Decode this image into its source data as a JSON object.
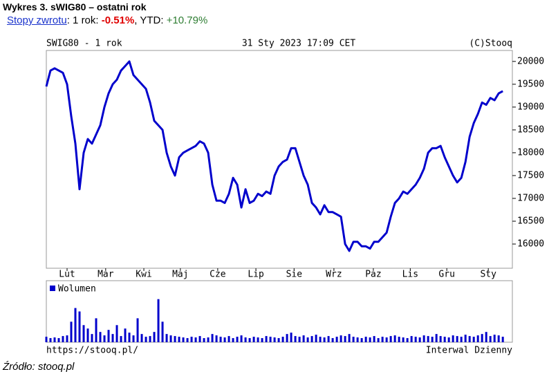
{
  "header": {
    "title": "Wykres 3. sWIG80 – ostatni rok",
    "returns_link": "Stopy zwrotu",
    "one_year_label": ": 1 rok:",
    "one_year_value": "-0.51%",
    "ytd_label": ", YTD:",
    "ytd_value": "+10.79%"
  },
  "source": "Źródło: stooq.pl",
  "chart_data": {
    "type": "line",
    "title": "SWIG80 - 1 rok",
    "timestamp": "31 Sty 2023 17:09 CET",
    "copyright": "(C)Stooq",
    "footer_left": "https://stooq.pl/",
    "footer_right": "Interwal Dzienny",
    "color": "#0000cc",
    "values": [
      19450,
      19800,
      19850,
      19800,
      19750,
      19500,
      18800,
      18200,
      17200,
      18000,
      18300,
      18200,
      18400,
      18600,
      19000,
      19300,
      19500,
      19600,
      19800,
      19900,
      20000,
      19700,
      19600,
      19500,
      19400,
      19100,
      18700,
      18600,
      18500,
      18000,
      17700,
      17500,
      17900,
      18000,
      18050,
      18100,
      18150,
      18250,
      18200,
      18000,
      17300,
      16950,
      16950,
      16900,
      17100,
      17450,
      17300,
      16800,
      17200,
      16900,
      16950,
      17100,
      17050,
      17150,
      17100,
      17500,
      17700,
      17800,
      17850,
      18100,
      18100,
      17800,
      17500,
      17300,
      16900,
      16800,
      16650,
      16850,
      16700,
      16700,
      16650,
      16600,
      16000,
      15850,
      16050,
      16050,
      15950,
      15950,
      15900,
      16050,
      16050,
      16150,
      16250,
      16600,
      16900,
      17000,
      17150,
      17100,
      17200,
      17300,
      17450,
      17650,
      18000,
      18100,
      18100,
      18150,
      17900,
      17700,
      17500,
      17350,
      17450,
      17800,
      18350,
      18650,
      18850,
      19100,
      19050,
      19200,
      19150,
      19300,
      19350
    ],
    "xlim": [
      0,
      112.3
    ],
    "xticks": [
      {
        "value": 5,
        "label": "Lut"
      },
      {
        "value": 14.3,
        "label": "Mar"
      },
      {
        "value": 23.5,
        "label": "Kwi"
      },
      {
        "value": 32.3,
        "label": "Maj"
      },
      {
        "value": 41.3,
        "label": "Cze"
      },
      {
        "value": 50.5,
        "label": "Lip"
      },
      {
        "value": 59.7,
        "label": "Sie"
      },
      {
        "value": 69.3,
        "label": "Wrz"
      },
      {
        "value": 78.8,
        "label": "Paz"
      },
      {
        "value": 87.7,
        "label": "Lis"
      },
      {
        "value": 96.5,
        "label": "Gru"
      },
      {
        "value": 106.5,
        "label": "Sty"
      }
    ],
    "ylim": [
      15470,
      20240
    ],
    "yticks": [
      16000,
      16500,
      17000,
      17500,
      18000,
      18500,
      19000,
      19500,
      20000
    ],
    "volume": {
      "name": "Wolumen",
      "color": "#0000cc",
      "ylim": [
        0,
        90
      ],
      "values": [
        8,
        6,
        7,
        6,
        9,
        10,
        30,
        50,
        45,
        25,
        20,
        12,
        35,
        15,
        10,
        18,
        12,
        25,
        9,
        20,
        14,
        10,
        35,
        12,
        8,
        9,
        15,
        63,
        30,
        12,
        10,
        9,
        8,
        7,
        6,
        8,
        7,
        9,
        6,
        7,
        12,
        10,
        8,
        7,
        9,
        6,
        8,
        10,
        7,
        6,
        8,
        7,
        6,
        9,
        8,
        7,
        6,
        8,
        12,
        14,
        9,
        8,
        10,
        7,
        9,
        11,
        8,
        7,
        9,
        6,
        8,
        10,
        9,
        12,
        8,
        7,
        6,
        8,
        7,
        9,
        6,
        8,
        7,
        9,
        10,
        8,
        7,
        6,
        9,
        8,
        7,
        10,
        9,
        8,
        12,
        9,
        8,
        7,
        10,
        9,
        8,
        11,
        9,
        8,
        10,
        12,
        15,
        9,
        11,
        10,
        8
      ]
    }
  }
}
